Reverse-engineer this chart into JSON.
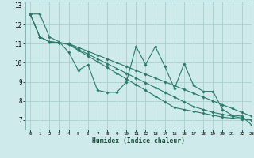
{
  "xlabel": "Humidex (Indice chaleur)",
  "ylabel": "",
  "bg_color": "#ceeaea",
  "grid_color": "#aacfcf",
  "line_color": "#2a7a6a",
  "xlim": [
    -0.5,
    23
  ],
  "ylim": [
    6.5,
    13.2
  ],
  "xticks": [
    0,
    1,
    2,
    3,
    4,
    5,
    6,
    7,
    8,
    9,
    10,
    11,
    12,
    13,
    14,
    15,
    16,
    17,
    18,
    19,
    20,
    21,
    22,
    23
  ],
  "yticks": [
    7,
    8,
    9,
    10,
    11,
    12,
    13
  ],
  "series": [
    [
      12.55,
      12.55,
      11.35,
      11.1,
      10.55,
      9.6,
      9.9,
      8.55,
      8.45,
      8.45,
      9.0,
      10.85,
      9.9,
      10.85,
      9.8,
      8.65,
      9.95,
      8.8,
      8.5,
      8.5,
      7.55,
      7.25,
      7.2,
      6.75
    ],
    [
      12.55,
      11.35,
      11.1,
      11.05,
      11.0,
      10.8,
      10.6,
      10.4,
      10.2,
      10.0,
      9.8,
      9.6,
      9.4,
      9.2,
      9.0,
      8.8,
      8.6,
      8.4,
      8.2,
      8.0,
      7.8,
      7.6,
      7.4,
      7.2
    ],
    [
      12.55,
      11.35,
      11.1,
      11.05,
      11.0,
      10.7,
      10.45,
      10.2,
      9.95,
      9.7,
      9.45,
      9.2,
      8.95,
      8.7,
      8.45,
      8.2,
      7.95,
      7.7,
      7.55,
      7.4,
      7.3,
      7.2,
      7.1,
      7.0
    ],
    [
      12.55,
      11.35,
      11.1,
      11.05,
      10.95,
      10.65,
      10.35,
      10.05,
      9.75,
      9.45,
      9.15,
      8.85,
      8.55,
      8.25,
      7.95,
      7.65,
      7.55,
      7.45,
      7.35,
      7.25,
      7.15,
      7.1,
      7.05,
      7.0
    ]
  ]
}
